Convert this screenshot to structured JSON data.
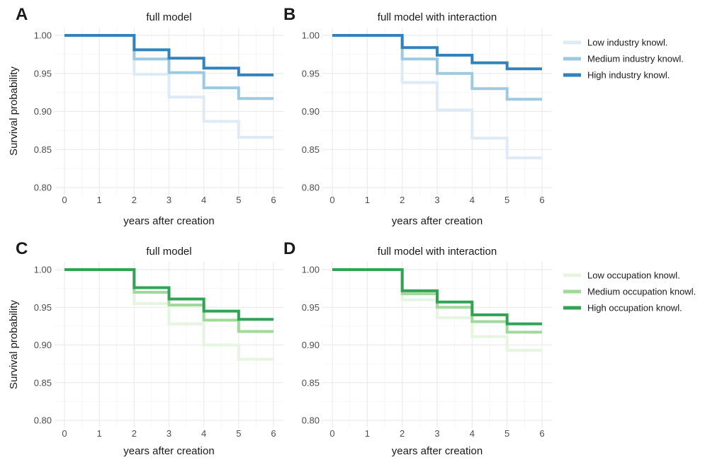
{
  "chart_data": [
    {
      "type": "line",
      "panel_label": "A",
      "title": "full model",
      "xlabel": "years after creation",
      "ylabel": "Survival probability",
      "xlim": [
        0,
        6
      ],
      "ylim": [
        0.8,
        1.0
      ],
      "x_ticks": [
        "0",
        "1",
        "2",
        "3",
        "4",
        "5",
        "6"
      ],
      "y_ticks": [
        "0.80",
        "0.85",
        "0.90",
        "0.95",
        "1.00"
      ],
      "step": true,
      "x": [
        0,
        2,
        3,
        4,
        5,
        6
      ],
      "series": [
        {
          "name": "Low industry knowl.",
          "color": "#deebf7",
          "values": [
            1.0,
            0.949,
            0.919,
            0.887,
            0.866,
            0.866
          ]
        },
        {
          "name": "Medium industry knowl.",
          "color": "#9ecae1",
          "values": [
            1.0,
            0.969,
            0.951,
            0.931,
            0.917,
            0.917
          ]
        },
        {
          "name": "High industry knowl.",
          "color": "#3182bd",
          "values": [
            1.0,
            0.981,
            0.97,
            0.957,
            0.948,
            0.948
          ]
        }
      ]
    },
    {
      "type": "line",
      "panel_label": "B",
      "title": "full model with interaction",
      "xlabel": "years after creation",
      "ylabel": "",
      "xlim": [
        0,
        6
      ],
      "ylim": [
        0.8,
        1.0
      ],
      "x_ticks": [
        "0",
        "1",
        "2",
        "3",
        "4",
        "5",
        "6"
      ],
      "y_ticks": [
        "0.80",
        "0.85",
        "0.90",
        "0.95",
        "1.00"
      ],
      "step": true,
      "x": [
        0,
        2,
        3,
        4,
        5,
        6
      ],
      "series": [
        {
          "name": "Low industry knowl.",
          "color": "#deebf7",
          "values": [
            1.0,
            0.938,
            0.902,
            0.865,
            0.839,
            0.839
          ]
        },
        {
          "name": "Medium industry knowl.",
          "color": "#9ecae1",
          "values": [
            1.0,
            0.969,
            0.95,
            0.93,
            0.916,
            0.916
          ]
        },
        {
          "name": "High industry knowl.",
          "color": "#3182bd",
          "values": [
            1.0,
            0.984,
            0.974,
            0.964,
            0.956,
            0.956
          ]
        }
      ]
    },
    {
      "type": "line",
      "panel_label": "C",
      "title": "full model",
      "xlabel": "years after creation",
      "ylabel": "Survival probability",
      "xlim": [
        0,
        6
      ],
      "ylim": [
        0.8,
        1.0
      ],
      "x_ticks": [
        "0",
        "1",
        "2",
        "3",
        "4",
        "5",
        "6"
      ],
      "y_ticks": [
        "0.80",
        "0.85",
        "0.90",
        "0.95",
        "1.00"
      ],
      "step": true,
      "x": [
        0,
        2,
        3,
        4,
        5,
        6
      ],
      "series": [
        {
          "name": "Low occupation knowl.",
          "color": "#e5f5e0",
          "values": [
            1.0,
            0.955,
            0.928,
            0.9,
            0.881,
            0.881
          ]
        },
        {
          "name": "Medium occupation knowl.",
          "color": "#a1d99b",
          "values": [
            1.0,
            0.97,
            0.953,
            0.933,
            0.918,
            0.918
          ]
        },
        {
          "name": "High occupation knowl.",
          "color": "#31a354",
          "values": [
            1.0,
            0.976,
            0.961,
            0.945,
            0.934,
            0.934
          ]
        }
      ]
    },
    {
      "type": "line",
      "panel_label": "D",
      "title": "full model with interaction",
      "xlabel": "years after creation",
      "ylabel": "",
      "xlim": [
        0,
        6
      ],
      "ylim": [
        0.8,
        1.0
      ],
      "x_ticks": [
        "0",
        "1",
        "2",
        "3",
        "4",
        "5",
        "6"
      ],
      "y_ticks": [
        "0.80",
        "0.85",
        "0.90",
        "0.95",
        "1.00"
      ],
      "step": true,
      "x": [
        0,
        2,
        3,
        4,
        5,
        6
      ],
      "series": [
        {
          "name": "Low occupation knowl.",
          "color": "#e5f5e0",
          "values": [
            1.0,
            0.96,
            0.936,
            0.911,
            0.893,
            0.893
          ]
        },
        {
          "name": "Medium occupation knowl.",
          "color": "#a1d99b",
          "values": [
            1.0,
            0.968,
            0.95,
            0.931,
            0.917,
            0.917
          ]
        },
        {
          "name": "High occupation knowl.",
          "color": "#31a354",
          "values": [
            1.0,
            0.972,
            0.957,
            0.94,
            0.928,
            0.928
          ]
        }
      ]
    }
  ],
  "legends": [
    {
      "placement": "right, top row",
      "entries": [
        {
          "label": "Low industry knowl.",
          "color": "#deebf7"
        },
        {
          "label": "Medium industry knowl.",
          "color": "#9ecae1"
        },
        {
          "label": "High industry knowl.",
          "color": "#3182bd"
        }
      ]
    },
    {
      "placement": "right, bottom row",
      "entries": [
        {
          "label": "Low occupation knowl.",
          "color": "#e5f5e0"
        },
        {
          "label": "Medium occupation knowl.",
          "color": "#a1d99b"
        },
        {
          "label": "High occupation knowl.",
          "color": "#31a354"
        }
      ]
    }
  ],
  "grid": true
}
